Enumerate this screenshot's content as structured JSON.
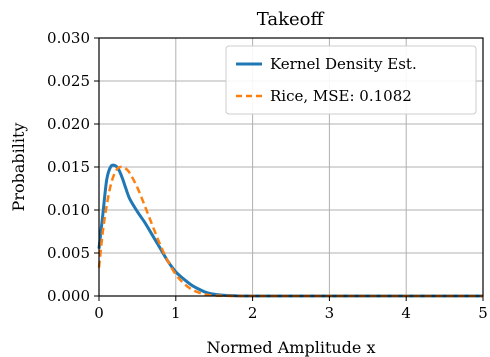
{
  "chart_data": {
    "type": "line",
    "title": "Takeoff",
    "xlabel": "Normed Amplitude x",
    "ylabel": "Probability",
    "xlim": [
      0,
      5
    ],
    "ylim": [
      0,
      0.03
    ],
    "x_ticks": [
      "0",
      "1",
      "2",
      "3",
      "4",
      "5"
    ],
    "y_ticks": [
      "0.000",
      "0.005",
      "0.010",
      "0.015",
      "0.020",
      "0.025",
      "0.030"
    ],
    "grid": true,
    "legend_position": "top-right",
    "series": [
      {
        "name": "Kernel Density Est.",
        "style": "solid",
        "color": "#1f77b4",
        "x": [
          0,
          0.05,
          0.1,
          0.15,
          0.2,
          0.25,
          0.3,
          0.35,
          0.4,
          0.5,
          0.6,
          0.7,
          0.8,
          0.9,
          1.0,
          1.1,
          1.2,
          1.3,
          1.4,
          1.5,
          1.6,
          1.8,
          2.0,
          2.5,
          3.0,
          3.5,
          4.0,
          4.5,
          5.0
        ],
        "y": [
          0.0055,
          0.0095,
          0.0135,
          0.015,
          0.0152,
          0.0148,
          0.0138,
          0.0125,
          0.0113,
          0.0098,
          0.0085,
          0.007,
          0.0055,
          0.004,
          0.0028,
          0.002,
          0.0013,
          0.0008,
          0.0004,
          0.0002,
          0.0001,
          2e-05,
          0,
          0,
          0,
          0,
          0,
          0,
          0
        ]
      },
      {
        "name": "Rice, MSE: 0.1082",
        "style": "dashed",
        "color": "#ff7f0e",
        "x": [
          0,
          0.05,
          0.1,
          0.15,
          0.2,
          0.25,
          0.3,
          0.35,
          0.4,
          0.5,
          0.6,
          0.7,
          0.8,
          0.9,
          1.0,
          1.1,
          1.2,
          1.3,
          1.4,
          1.5,
          1.6,
          1.8,
          2.0,
          2.5,
          3.0,
          3.5,
          4.0,
          4.5,
          5.0
        ],
        "y": [
          0.0033,
          0.0075,
          0.0105,
          0.0128,
          0.0142,
          0.0149,
          0.015,
          0.0148,
          0.0143,
          0.0126,
          0.0104,
          0.0081,
          0.0059,
          0.004,
          0.0025,
          0.0015,
          0.0008,
          0.0004,
          0.00015,
          5e-05,
          2e-05,
          0,
          0,
          0,
          0,
          0,
          0,
          0,
          0
        ]
      }
    ]
  }
}
